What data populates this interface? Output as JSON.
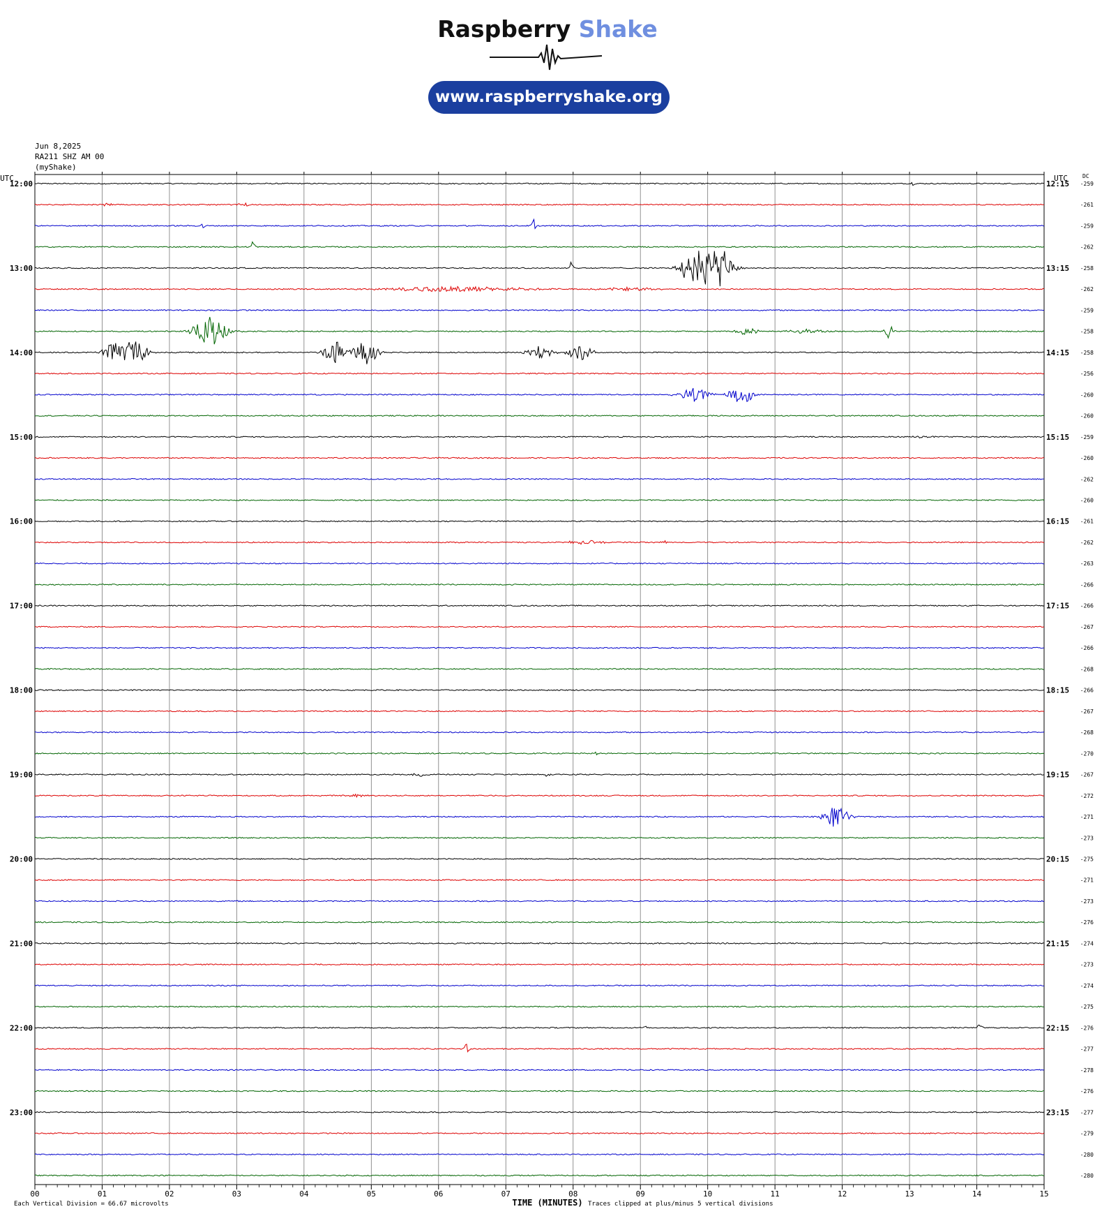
{
  "header": {
    "logo_word1": "Raspberry",
    "logo_word2": "Shake",
    "url": "www.raspberryshake.org",
    "date": "Jun 8,2025",
    "station": "RA211 SHZ AM 00",
    "network": "(myShake)"
  },
  "footer": {
    "division_note": "Each Vertical Division =",
    "division_value": "66.67 microvolts",
    "clip_note": "Traces clipped at plus/minus 5 vertical divisions"
  },
  "chart_data": {
    "type": "line",
    "title": "",
    "xlabel": "TIME (MINUTES)",
    "left_axis_label": "UTC",
    "right_axis_label": "UTC",
    "dc_label": "DC",
    "xlim": [
      0,
      15
    ],
    "x_ticks": [
      "00",
      "01",
      "02",
      "03",
      "04",
      "05",
      "06",
      "07",
      "08",
      "09",
      "10",
      "11",
      "12",
      "13",
      "14",
      "15"
    ],
    "trace_colors": [
      "#000000",
      "#dd0000",
      "#0000cc",
      "#006400"
    ],
    "grid": "vertical lines at each minute",
    "left_time_labels": [
      {
        "row": 0,
        "label": "12:00"
      },
      {
        "row": 4,
        "label": "13:00"
      },
      {
        "row": 8,
        "label": "14:00"
      },
      {
        "row": 12,
        "label": "15:00"
      },
      {
        "row": 16,
        "label": "16:00"
      },
      {
        "row": 20,
        "label": "17:00"
      },
      {
        "row": 24,
        "label": "18:00"
      },
      {
        "row": 28,
        "label": "19:00"
      },
      {
        "row": 32,
        "label": "20:00"
      },
      {
        "row": 36,
        "label": "21:00"
      },
      {
        "row": 40,
        "label": "22:00"
      },
      {
        "row": 44,
        "label": "23:00"
      }
    ],
    "right_time_labels": [
      {
        "row": 0,
        "label": "12:15"
      },
      {
        "row": 4,
        "label": "13:15"
      },
      {
        "row": 8,
        "label": "14:15"
      },
      {
        "row": 12,
        "label": "15:15"
      },
      {
        "row": 16,
        "label": "16:15"
      },
      {
        "row": 20,
        "label": "17:15"
      },
      {
        "row": 24,
        "label": "18:15"
      },
      {
        "row": 28,
        "label": "19:15"
      },
      {
        "row": 32,
        "label": "20:15"
      },
      {
        "row": 36,
        "label": "21:15"
      },
      {
        "row": 40,
        "label": "22:15"
      },
      {
        "row": 44,
        "label": "23:15"
      }
    ],
    "dc_offsets": [
      "-259",
      "-261",
      "-259",
      "-262",
      "-258",
      "-262",
      "-259",
      "-258",
      "-258",
      "-256",
      "-260",
      "-260",
      "-259",
      "-260",
      "-262",
      "-260",
      "-261",
      "-262",
      "-263",
      "-266",
      "-266",
      "-267",
      "-266",
      "-268",
      "-266",
      "-267",
      "-268",
      "-270",
      "-267",
      "-272",
      "-271",
      "-273",
      "-275",
      "-271",
      "-273",
      "-276",
      "-274",
      "-273",
      "-274",
      "-275",
      "-276",
      "-277",
      "-278",
      "-276",
      "-277",
      "-279",
      "-280",
      "-280"
    ],
    "noise_divisions": 0.13,
    "events": [
      {
        "row": 0,
        "minute": 13.05,
        "amp": 0.5,
        "width": 0.03,
        "shape": "spike"
      },
      {
        "row": 1,
        "minute": 1.05,
        "amp": 0.4,
        "width": 0.15,
        "shape": "burst"
      },
      {
        "row": 1,
        "minute": 3.1,
        "amp": 0.6,
        "width": 0.1,
        "shape": "burst"
      },
      {
        "row": 2,
        "minute": 2.5,
        "amp": 0.7,
        "width": 0.04,
        "shape": "spike"
      },
      {
        "row": 2,
        "minute": 7.42,
        "amp": 1.5,
        "width": 0.05,
        "shape": "spike"
      },
      {
        "row": 3,
        "minute": 3.25,
        "amp": 1.8,
        "width": 0.05,
        "shape": "step"
      },
      {
        "row": 4,
        "minute": 7.98,
        "amp": 1.8,
        "width": 0.05,
        "shape": "step"
      },
      {
        "row": 4,
        "minute": 9.8,
        "amp": 5,
        "width": 0.25,
        "shape": "burst"
      },
      {
        "row": 4,
        "minute": 10.15,
        "amp": 5,
        "width": 0.3,
        "shape": "burst"
      },
      {
        "row": 5,
        "minute": 6.2,
        "amp": 0.6,
        "width": 1.5,
        "shape": "burst"
      },
      {
        "row": 5,
        "minute": 8.8,
        "amp": 0.4,
        "width": 0.6,
        "shape": "burst"
      },
      {
        "row": 7,
        "minute": 2.6,
        "amp": 3.5,
        "width": 0.35,
        "shape": "burst"
      },
      {
        "row": 7,
        "minute": 10.6,
        "amp": 1,
        "width": 0.2,
        "shape": "burst"
      },
      {
        "row": 7,
        "minute": 11.5,
        "amp": 0.5,
        "width": 0.4,
        "shape": "burst"
      },
      {
        "row": 7,
        "minute": 12.7,
        "amp": 1.8,
        "width": 0.1,
        "shape": "burst"
      },
      {
        "row": 8,
        "minute": 1.2,
        "amp": 2.5,
        "width": 0.25,
        "shape": "burst"
      },
      {
        "row": 8,
        "minute": 1.5,
        "amp": 3,
        "width": 0.25,
        "shape": "burst"
      },
      {
        "row": 8,
        "minute": 4.45,
        "amp": 3,
        "width": 0.2,
        "shape": "burst"
      },
      {
        "row": 8,
        "minute": 4.9,
        "amp": 3,
        "width": 0.25,
        "shape": "burst"
      },
      {
        "row": 8,
        "minute": 7.5,
        "amp": 1.5,
        "width": 0.25,
        "shape": "burst"
      },
      {
        "row": 8,
        "minute": 8.1,
        "amp": 2,
        "width": 0.25,
        "shape": "burst"
      },
      {
        "row": 10,
        "minute": 9.8,
        "amp": 1.8,
        "width": 0.3,
        "shape": "burst"
      },
      {
        "row": 10,
        "minute": 10.5,
        "amp": 2.2,
        "width": 0.25,
        "shape": "burst"
      },
      {
        "row": 12,
        "minute": 13.2,
        "amp": 0.3,
        "width": 0.2,
        "shape": "burst"
      },
      {
        "row": 17,
        "minute": 8.2,
        "amp": 0.35,
        "width": 0.5,
        "shape": "burst"
      },
      {
        "row": 17,
        "minute": 9.35,
        "amp": 0.4,
        "width": 0.05,
        "shape": "burst"
      },
      {
        "row": 27,
        "minute": 8.35,
        "amp": 0.5,
        "width": 0.03,
        "shape": "spike"
      },
      {
        "row": 28,
        "minute": 5.7,
        "amp": 0.5,
        "width": 0.15,
        "shape": "burst"
      },
      {
        "row": 28,
        "minute": 7.6,
        "amp": 0.3,
        "width": 0.08,
        "shape": "burst"
      },
      {
        "row": 29,
        "minute": 4.8,
        "amp": 0.3,
        "width": 0.2,
        "shape": "burst"
      },
      {
        "row": 30,
        "minute": 11.9,
        "amp": 2.5,
        "width": 0.25,
        "shape": "burst"
      },
      {
        "row": 40,
        "minute": 9.08,
        "amp": 0.6,
        "width": 0.04,
        "shape": "step"
      },
      {
        "row": 40,
        "minute": 14.05,
        "amp": 0.8,
        "width": 0.08,
        "shape": "step"
      },
      {
        "row": 41,
        "minute": 6.42,
        "amp": 1.2,
        "width": 0.06,
        "shape": "spike"
      }
    ]
  }
}
